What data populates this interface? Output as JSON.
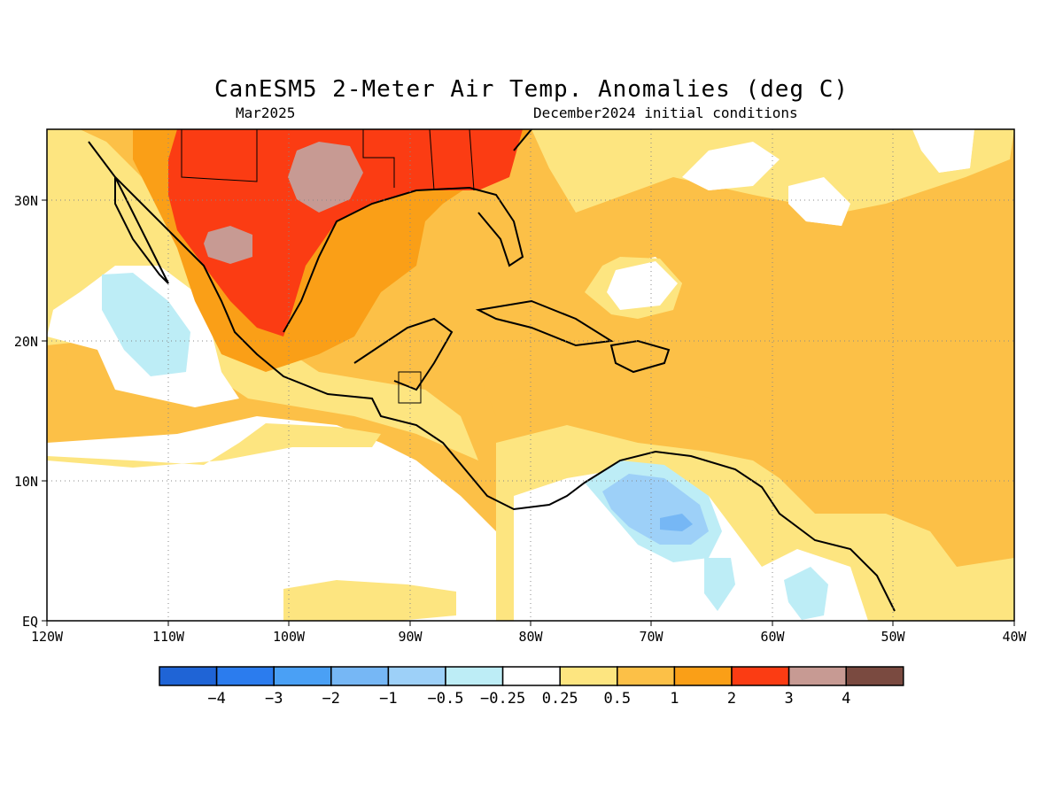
{
  "header": {
    "title": "CanESM5 2-Meter Air Temp. Anomalies (deg C)",
    "valid_month": "Mar2025",
    "init": "December2024 initial conditions"
  },
  "axes": {
    "lon_labels": [
      "120W",
      "110W",
      "100W",
      "90W",
      "80W",
      "70W",
      "60W",
      "50W",
      "40W"
    ],
    "lat_labels": [
      "EQ",
      "10N",
      "20N",
      "30N"
    ]
  },
  "legend": {
    "colors": [
      "#1f64d6",
      "#2b7cee",
      "#4aa0f5",
      "#76b7f5",
      "#9dd0f8",
      "#bdedf6",
      "#ffffff",
      "#fde580",
      "#fcc047",
      "#fa9f17",
      "#fb3c13",
      "#c79a93",
      "#7a4a40"
    ],
    "tick_labels": [
      "−4",
      "−3",
      "−2",
      "−1",
      "−0.5",
      "−0.25",
      "0.25",
      "0.5",
      "1",
      "2",
      "3",
      "4"
    ]
  }
}
